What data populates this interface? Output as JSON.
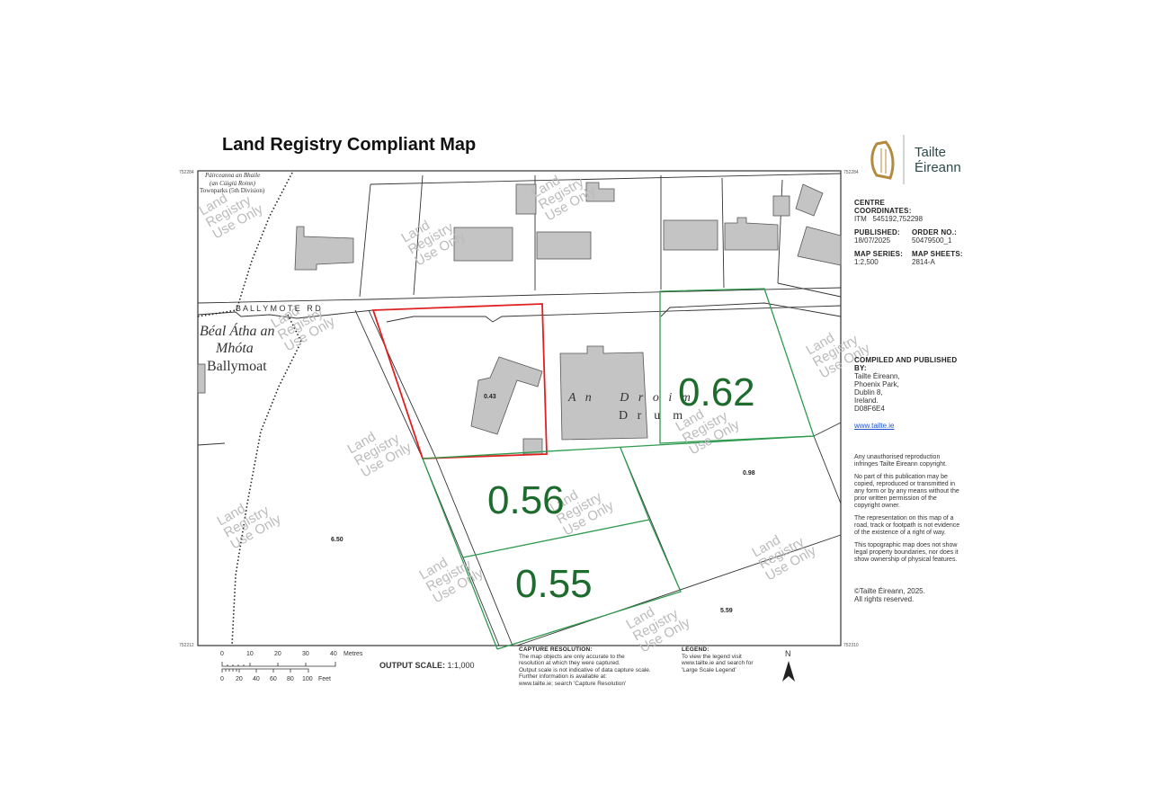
{
  "title": "Land Registry Compliant Map",
  "brand": {
    "name_line1": "Tailte",
    "name_line2": "Éireann",
    "logo": "harp-icon",
    "accent": "#2b4a4a",
    "harp_color": "#b38a3e"
  },
  "info": {
    "centre_label": "CENTRE COORDINATES:",
    "centre_value": "ITM   545192,752298",
    "published_label": "PUBLISHED:",
    "published_value": "18/07/2025",
    "order_label": "ORDER NO.:",
    "order_value": "50479500_1",
    "series_label": "MAP SERIES:",
    "series_value": "1:2,500",
    "sheets_label": "MAP SHEETS:",
    "sheets_value": "2814-A",
    "compiled_label": "COMPILED AND PUBLISHED BY:",
    "address": [
      "Tailte Éireann,",
      "Phoenix Park,",
      "Dublin 8,",
      "Ireland.",
      "D08F6E4"
    ],
    "website": "www.tailte.ie",
    "notices": [
      "Any unauthorised reproduction infringes Tailte Éireann copyright.",
      "No part of this publication may be copied, reproduced or transmitted in any form or by any means without the prior written permission of the copyright owner.",
      "The representation on this map of a road, track or footpath is not evidence of the existence of a right of way.",
      "This topographic map does not show legal property boundaries, nor does it show ownership of physical features."
    ],
    "copyright": [
      "©Tailte Éireann, 2025.",
      "All rights reserved."
    ]
  },
  "map": {
    "townland_irish": "Páirceanna an Bhaile",
    "townland_irish2": "(an Cúigiú Roinn)",
    "townland_english": "Townparks (5th Division)",
    "road_name": "B A L L Y M O T E   R D",
    "place_irish1": "Béal Átha an",
    "place_irish2": "Mhóta",
    "place_english": "Ballymoat",
    "locality_irish": "A   n         D   r   o   i   m",
    "locality_english": "D   r    u    m",
    "watermark": [
      "Land",
      "Registry",
      "Use Only"
    ],
    "areas": {
      "a1": "0.43",
      "a2": "6.50",
      "a3": "0.98",
      "a4": "5.59"
    },
    "highlighted_areas": {
      "h1": "0.62",
      "h2": "0.56",
      "h3": "0.55"
    },
    "corner_coords": {
      "top_left": "752284",
      "bottom_left": "752212",
      "top_right": "752284",
      "bottom_right": "752310"
    },
    "colors": {
      "red_boundary": "#e02020",
      "green_parcels": "#2e9a4e",
      "building": "#c4c4c4",
      "area_text": "#1e6b2e"
    }
  },
  "footer": {
    "scale_metres": [
      "0",
      "10",
      "20",
      "30",
      "40"
    ],
    "metres_label": "Metres",
    "scale_feet": [
      "0",
      "20",
      "40",
      "60",
      "80",
      "100"
    ],
    "feet_label": "Feet",
    "output_scale_label": "OUTPUT SCALE:",
    "output_scale_value": "1:1,000",
    "capture_title": "CAPTURE RESOLUTION:",
    "capture_lines": [
      "The map objects are only accurate to the",
      "resolution at which they were captured.",
      "Output scale is not indicative of data capture scale.",
      "Further information is available at:",
      "www.tailte.ie; search 'Capture Resolution'"
    ],
    "legend_title": "LEGEND:",
    "legend_lines": [
      "To view the legend visit",
      "www.tailte.ie and search for",
      "'Large Scale Legend'"
    ],
    "north": "N"
  }
}
